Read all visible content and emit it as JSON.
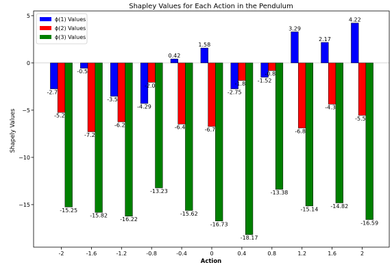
{
  "chart_data": {
    "type": "bar",
    "title": "Shapley Values for Each Action in the Pendulum",
    "xlabel": "Action",
    "ylabel": "Shapely Values",
    "categories": [
      "-2",
      "-1.6",
      "-1.2",
      "-0.8",
      "-0.4",
      "0",
      "0.4",
      "0.8",
      "1.2",
      "1.6",
      "2"
    ],
    "ylim": [
      -19.5,
      5.5
    ],
    "yticks": [
      5,
      0,
      -5,
      -10,
      -15
    ],
    "ytick_labels": [
      "5",
      "0",
      "−5",
      "−10",
      "−15"
    ],
    "grid": false,
    "zero_line": true,
    "legend_position": "top-left",
    "series": [
      {
        "name": "ϕ(1) Values",
        "color": "#0000ff",
        "values": [
          -2.75,
          -0.56,
          -3.53,
          -4.29,
          0.42,
          1.58,
          -2.75,
          -1.52,
          3.29,
          2.17,
          4.22
        ],
        "labels": [
          "-2.75",
          "-0.56",
          "-3.53",
          "-4.29",
          "0.42",
          "1.58",
          "-2.75",
          "-1.52",
          "3.29",
          "2.17",
          "4.22"
        ]
      },
      {
        "name": "ϕ(2) Values",
        "color": "#ff0000",
        "values": [
          -5.24,
          -7.29,
          -6.24,
          -2.06,
          -6.47,
          -6.72,
          -1.86,
          -0.82,
          -6.89,
          -4.37,
          -5.55
        ],
        "labels": [
          "-5.24",
          "-7.29",
          "-6.24",
          "-2.06",
          "-6.47",
          "-6.72",
          "-1.86",
          "-0.82",
          "-6.89",
          "-4.37",
          "-5.55"
        ]
      },
      {
        "name": "ϕ(3) Values",
        "color": "#008000",
        "values": [
          -15.25,
          -15.82,
          -16.22,
          -13.23,
          -15.62,
          -16.73,
          -18.17,
          -13.38,
          -15.14,
          -14.82,
          -16.59
        ],
        "labels": [
          "-15.25",
          "-15.82",
          "-16.22",
          "-13.23",
          "-15.62",
          "-16.73",
          "-18.17",
          "-13.38",
          "-15.14",
          "-14.82",
          "-16.59"
        ]
      }
    ]
  }
}
